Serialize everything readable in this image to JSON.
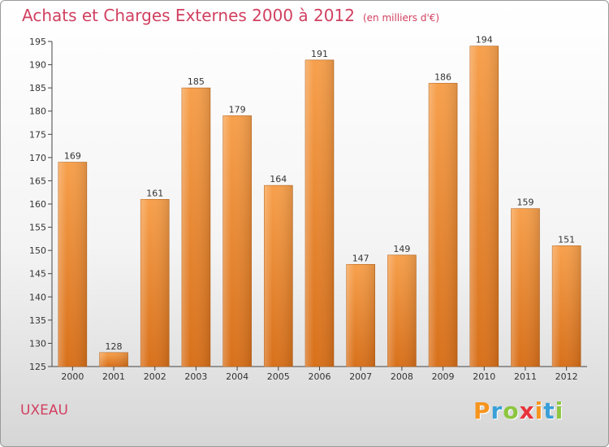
{
  "title": "Achats et Charges Externes 2000 à 2012",
  "subtitle": "(en milliers d'€)",
  "commune": "UXEAU",
  "logo": {
    "text": "Proxiti",
    "letters": [
      {
        "char": "P",
        "color": "#f7941d"
      },
      {
        "char": "r",
        "color": "#3aa0d8"
      },
      {
        "char": "o",
        "color": "#8cc63f"
      },
      {
        "char": "x",
        "color": "#e8343c"
      },
      {
        "char": "i",
        "color": "#f7941d"
      },
      {
        "char": "t",
        "color": "#3aa0d8"
      },
      {
        "char": "i",
        "color": "#8cc63f"
      }
    ]
  },
  "colors": {
    "bar_top": "#f7a04c",
    "bar_bottom": "#d8701a",
    "accent": "#d14060"
  },
  "chart_data": {
    "type": "bar",
    "categories": [
      "2000",
      "2001",
      "2002",
      "2003",
      "2004",
      "2005",
      "2006",
      "2007",
      "2008",
      "2009",
      "2010",
      "2011",
      "2012"
    ],
    "values": [
      169,
      128,
      161,
      185,
      179,
      164,
      191,
      147,
      149,
      186,
      194,
      159,
      151
    ],
    "ylim": [
      125,
      195
    ],
    "yticks": [
      125,
      130,
      135,
      140,
      145,
      150,
      155,
      160,
      165,
      170,
      175,
      180,
      185,
      190,
      195
    ],
    "grid": false,
    "xlabel": "",
    "ylabel": ""
  }
}
